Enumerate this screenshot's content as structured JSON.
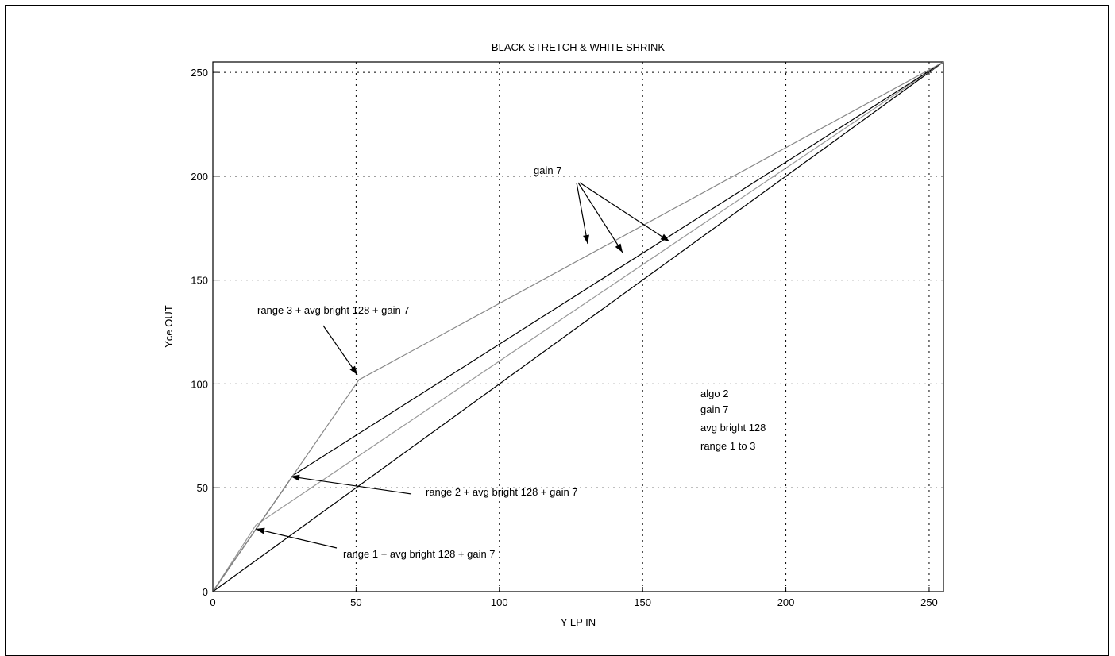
{
  "chart_data": {
    "type": "line",
    "title": "BLACK STRETCH & WHITE SHRINK",
    "xlabel": "Y LP IN",
    "ylabel": "Yce OUT",
    "xlim": [
      0,
      255
    ],
    "ylim": [
      0,
      255
    ],
    "xticks": [
      0,
      50,
      100,
      150,
      200,
      250
    ],
    "yticks": [
      0,
      50,
      100,
      150,
      200,
      250
    ],
    "grid": true,
    "series": [
      {
        "x": [
          0,
          255
        ],
        "y": [
          0,
          255
        ],
        "color": "#000000"
      },
      {
        "x": [
          0,
          15,
          255
        ],
        "y": [
          0,
          32,
          255
        ],
        "color": "#999999"
      },
      {
        "x": [
          0,
          28,
          255
        ],
        "y": [
          0,
          56,
          255
        ],
        "color": "#000000"
      },
      {
        "x": [
          0,
          51,
          255
        ],
        "y": [
          0,
          102,
          255
        ],
        "color": "#888888"
      }
    ],
    "annotations": [
      {
        "text": "gain 7"
      },
      {
        "text": "range 3 + avg bright 128 + gain 7"
      },
      {
        "text": "range 2 + avg bright 128 + gain 7"
      },
      {
        "text": "range 1 + avg bright 128 + gain 7"
      }
    ],
    "info_box": [
      "algo 2",
      "gain 7",
      "avg bright 128",
      "range 1 to 3"
    ]
  }
}
